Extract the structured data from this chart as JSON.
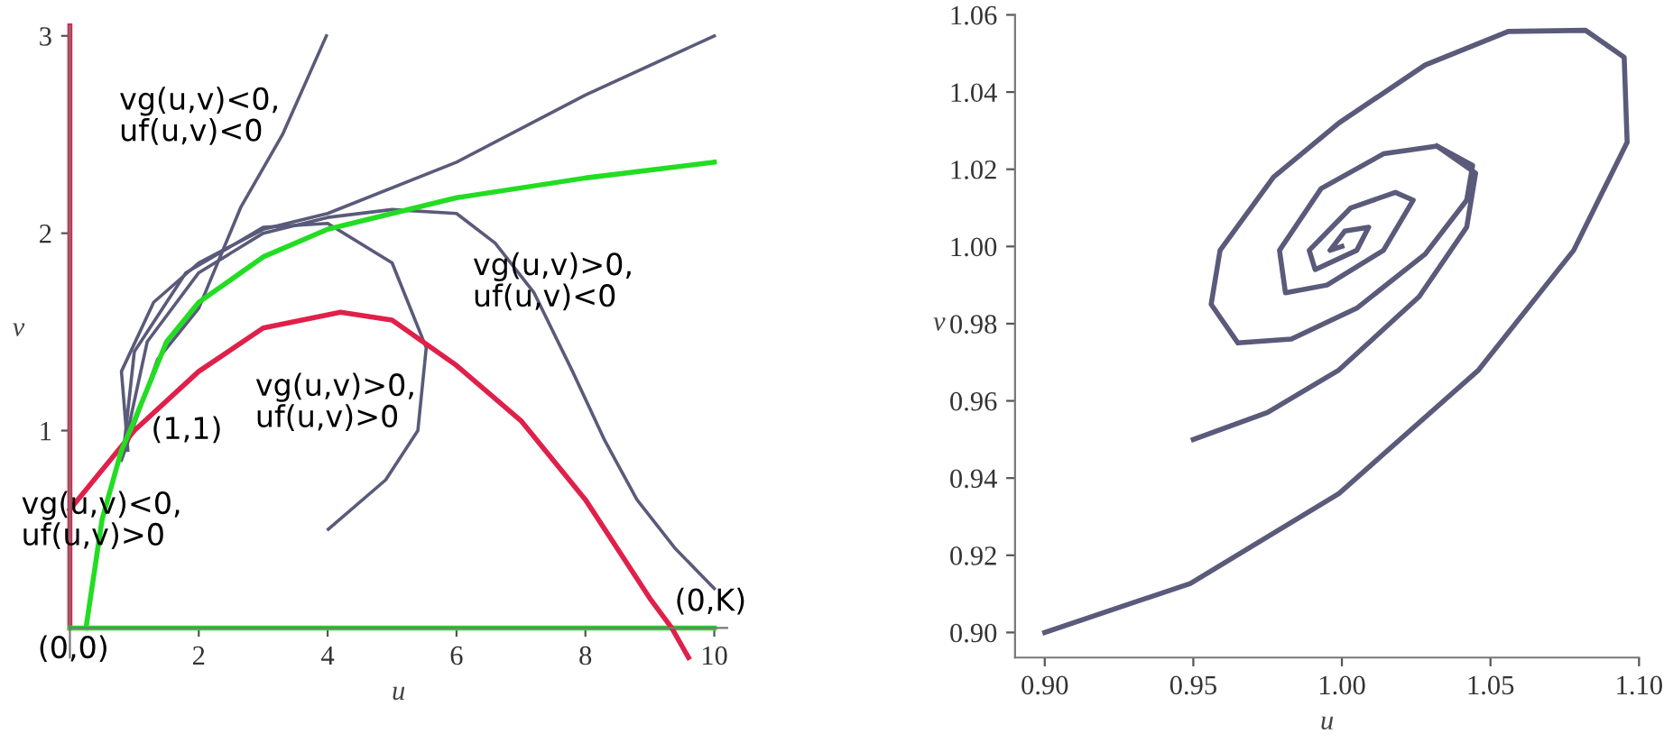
{
  "chart_data": [
    {
      "type": "line",
      "xlabel": "u",
      "ylabel": "v",
      "xlim": [
        0,
        10.2
      ],
      "ylim": [
        -0.15,
        3.05
      ],
      "xticks": [
        2,
        4,
        6,
        8,
        10
      ],
      "yticks": [
        1,
        2,
        3
      ],
      "grid": false,
      "legend": false,
      "marker": "none",
      "line_style": "solid",
      "series": [
        {
          "color": "#e0204a",
          "x": [
            0,
            0
          ],
          "values": [
            0,
            3.05
          ]
        },
        {
          "color": "#22dd22",
          "x": [
            0,
            10
          ],
          "values": [
            0,
            0
          ]
        },
        {
          "color": "#5a5a7a",
          "x": [
            0.8,
            1.36,
            2.0,
            2.65,
            3.3,
            3.98
          ],
          "values": [
            0.85,
            1.36,
            1.62,
            2.13,
            2.5,
            3.0
          ]
        },
        {
          "color": "#5a5a7a",
          "x": [
            0.9,
            0.8,
            1.3,
            2.0,
            3.0,
            4.0,
            6.0,
            8.0,
            10.0
          ],
          "values": [
            0.9,
            1.3,
            1.65,
            1.85,
            2.02,
            2.1,
            2.36,
            2.7,
            3.0
          ]
        },
        {
          "color": "#5a5a7a",
          "x": [
            0.85,
            1.0,
            1.8,
            3.0,
            4.0,
            5.0,
            5.53,
            5.4,
            4.9,
            4.01
          ],
          "values": [
            0.95,
            1.4,
            1.8,
            2.03,
            2.05,
            1.85,
            1.42,
            1.0,
            0.75,
            0.5
          ]
        },
        {
          "color": "#5a5a7a",
          "x": [
            0.9,
            1.2,
            2.0,
            3.0,
            4.0,
            5.0,
            6.0,
            6.6,
            7.2,
            7.8,
            8.3,
            8.8,
            9.4,
            10.0
          ],
          "values": [
            1.0,
            1.45,
            1.8,
            2.0,
            2.08,
            2.12,
            2.1,
            1.95,
            1.7,
            1.3,
            0.95,
            0.65,
            0.4,
            0.2
          ]
        },
        {
          "color": "#e0204a",
          "x": [
            0,
            0.5,
            1,
            2,
            3,
            4.2,
            5,
            6,
            7,
            8,
            9,
            9.34,
            9.6
          ],
          "values": [
            0.6,
            0.8,
            1,
            1.3,
            1.52,
            1.6,
            1.56,
            1.33,
            1.05,
            0.65,
            0.15,
            0,
            -0.15
          ]
        },
        {
          "color": "#22dd22",
          "x": [
            0.25,
            0.5,
            0.8,
            1,
            1.5,
            2,
            3,
            4,
            5,
            6,
            8,
            10
          ],
          "values": [
            0,
            0.55,
            0.9,
            1.05,
            1.45,
            1.65,
            1.88,
            2.02,
            2.1,
            2.18,
            2.28,
            2.36
          ]
        }
      ],
      "annotations": [
        "vg(u,v)<0,\nuf(u,v)<0",
        "vg(u,v)>0,\nuf(u,v)<0",
        "vg(u,v)>0,\nuf(u,v)>0",
        "vg(u,v)<0,\nuf(u,v)>0",
        {
          "text": "(1,1)",
          "x": 1.26,
          "y": 1.0
        },
        "(0,K)",
        "(0,0)"
      ]
    },
    {
      "type": "line",
      "xlabel": "u",
      "ylabel": "v",
      "xlim": [
        0.89,
        1.1
      ],
      "ylim": [
        0.8935,
        1.06
      ],
      "xticks": [
        {
          "value": 0.9,
          "label": "0.90"
        },
        {
          "value": 0.95,
          "label": "0.95"
        },
        {
          "value": 1.0,
          "label": "1.00"
        },
        {
          "value": 1.05,
          "label": "1.05"
        },
        {
          "value": 1.1,
          "label": "1.10"
        }
      ],
      "yticks": [
        {
          "value": 0.9,
          "label": "0.90"
        },
        {
          "value": 0.92,
          "label": "0.92"
        },
        {
          "value": 0.94,
          "label": "0.94"
        },
        {
          "value": 0.96,
          "label": "0.96"
        },
        {
          "value": 0.98,
          "label": "0.98"
        },
        {
          "value": 1.0,
          "label": "1.00"
        },
        {
          "value": 1.02,
          "label": "1.02"
        },
        {
          "value": 1.04,
          "label": "1.04"
        },
        {
          "value": 1.06,
          "label": "1.06"
        }
      ],
      "grid": false,
      "legend": false,
      "marker": "none",
      "line_style": "solid",
      "series": [
        {
          "color": "#5a5a7a",
          "x": [
            0.9,
            0.949,
            0.999,
            1.046,
            1.078,
            1.096,
            1.095,
            1.082,
            1.056,
            1.028,
            0.999,
            0.977,
            0.959,
            0.956,
            0.965,
            0.983,
            1.005,
            1.028,
            1.042,
            1.044,
            1.032,
            1.014,
            0.993,
            0.979,
            0.981,
            0.995,
            1.014,
            1.024,
            1.018,
            1.003,
            0.989,
            0.991,
            1.005,
            1.009,
            1.001,
            0.996,
            1.0
          ],
          "values": [
            0.9,
            0.9127,
            0.936,
            0.968,
            0.999,
            1.027,
            1.049,
            1.056,
            1.0557,
            1.047,
            1.032,
            1.018,
            0.999,
            0.985,
            0.975,
            0.976,
            0.984,
            0.998,
            1.012,
            1.021,
            1.026,
            1.024,
            1.015,
            0.999,
            0.988,
            0.99,
            0.999,
            1.012,
            1.014,
            1.01,
            0.999,
            0.994,
            0.999,
            1.005,
            1.004,
            0.999,
            1.0
          ]
        },
        {
          "color": "#5a5a7a",
          "x": [
            0.95,
            0.975,
            0.999,
            1.026,
            1.042,
            1.045,
            1.032
          ],
          "values": [
            0.95,
            0.957,
            0.968,
            0.987,
            1.005,
            1.019,
            1.026
          ]
        }
      ]
    }
  ]
}
